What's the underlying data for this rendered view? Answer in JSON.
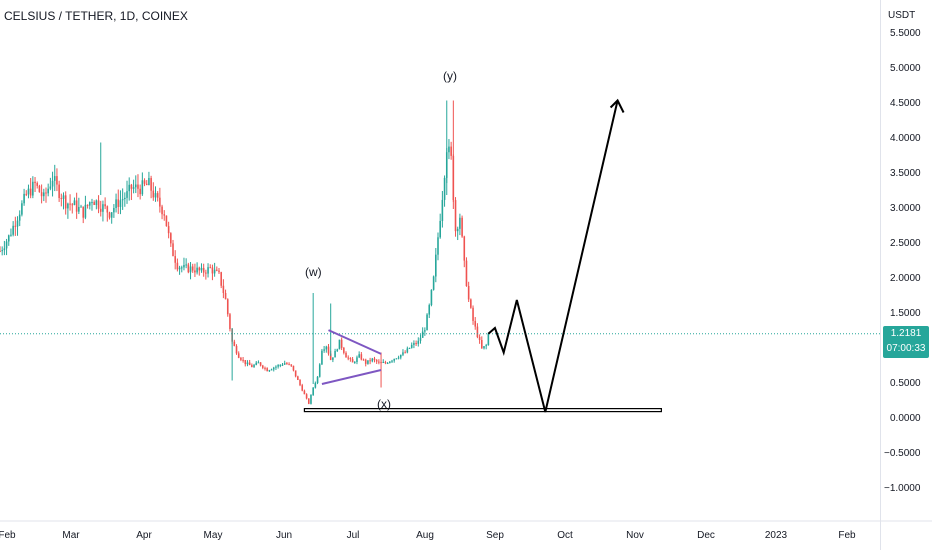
{
  "header": {
    "symbol": "CELSIUS / TETHER, 1D, COINEX"
  },
  "price_axis": {
    "currency": "USDT"
  },
  "last_price": {
    "value": "1.2181",
    "countdown": "07:00:33",
    "color": "#26a69a"
  },
  "annotations": {
    "w": "(w)",
    "y": "(y)",
    "x": "(x)"
  },
  "colors": {
    "up": "#26a69a",
    "down": "#ef5350",
    "triangle": "#7e57c2",
    "projection": "#000000",
    "price_line": "#26a69a"
  },
  "chart_data": {
    "type": "candlestick",
    "title": "CELSIUS / TETHER, 1D, COINEX",
    "y_ticks": [
      "5.5000",
      "5.0000",
      "4.5000",
      "4.0000",
      "3.5000",
      "3.0000",
      "2.5000",
      "2.0000",
      "1.5000",
      "1.0000",
      "0.5000",
      "0.0000",
      "−0.5000",
      "−1.0000"
    ],
    "y_tick_values": [
      5.5,
      5.0,
      4.5,
      4.0,
      3.5,
      3.0,
      2.5,
      2.0,
      1.5,
      1.0,
      0.5,
      0.0,
      -0.5,
      -1.0
    ],
    "x_ticks": [
      "Feb",
      "Mar",
      "Apr",
      "May",
      "Jun",
      "Jul",
      "Aug",
      "Sep",
      "Oct",
      "Nov",
      "Dec",
      "2023",
      "Feb"
    ],
    "ylim": [
      -1.3,
      5.9
    ],
    "close_path": [
      [
        0,
        2.4
      ],
      [
        4,
        2.6
      ],
      [
        8,
        2.9
      ],
      [
        12,
        3.2
      ],
      [
        16,
        3.35
      ],
      [
        20,
        3.15
      ],
      [
        24,
        3.45
      ],
      [
        26,
        3.3
      ],
      [
        30,
        3.1
      ],
      [
        34,
        3.05
      ],
      [
        38,
        2.95
      ],
      [
        42,
        3.15
      ],
      [
        46,
        3.05
      ],
      [
        50,
        2.95
      ],
      [
        54,
        3.1
      ],
      [
        58,
        3.2
      ],
      [
        60,
        3.3
      ],
      [
        64,
        3.3
      ],
      [
        68,
        3.35
      ],
      [
        71,
        3.15
      ],
      [
        75,
        2.95
      ],
      [
        78,
        2.45
      ],
      [
        81,
        2.2
      ],
      [
        84,
        2.15
      ],
      [
        88,
        2.15
      ],
      [
        92,
        2.1
      ],
      [
        96,
        2.15
      ],
      [
        100,
        2.05
      ],
      [
        103,
        1.7
      ],
      [
        106,
        1.1
      ],
      [
        109,
        0.9
      ],
      [
        112,
        0.8
      ],
      [
        115,
        0.75
      ],
      [
        118,
        0.8
      ],
      [
        122,
        0.7
      ],
      [
        126,
        0.75
      ],
      [
        130,
        0.8
      ],
      [
        133,
        0.75
      ],
      [
        136,
        0.55
      ],
      [
        139,
        0.35
      ],
      [
        141,
        0.22
      ],
      [
        143,
        0.45
      ],
      [
        145,
        0.6
      ],
      [
        147,
        1.0
      ],
      [
        149,
        1.05
      ],
      [
        151,
        0.85
      ],
      [
        153,
        0.95
      ],
      [
        155,
        1.1
      ],
      [
        158,
        0.9
      ],
      [
        161,
        0.8
      ],
      [
        164,
        0.9
      ],
      [
        167,
        0.8
      ],
      [
        170,
        0.85
      ],
      [
        173,
        0.8
      ],
      [
        176,
        0.8
      ],
      [
        179,
        0.85
      ],
      [
        182,
        0.9
      ],
      [
        185,
        0.95
      ],
      [
        188,
        1.05
      ],
      [
        191,
        1.1
      ],
      [
        194,
        1.3
      ],
      [
        196,
        1.6
      ],
      [
        198,
        2.0
      ],
      [
        200,
        2.6
      ],
      [
        202,
        3.2
      ],
      [
        204,
        3.9
      ],
      [
        206,
        3.7
      ],
      [
        208,
        2.7
      ],
      [
        210,
        2.9
      ],
      [
        212,
        2.2
      ],
      [
        214,
        1.7
      ],
      [
        216,
        1.4
      ],
      [
        218,
        1.2
      ],
      [
        220,
        1.0
      ],
      [
        222,
        1.05
      ],
      [
        223,
        1.218
      ]
    ],
    "projection_path": [
      [
        223,
        1.218
      ],
      [
        226,
        1.3
      ],
      [
        230,
        0.95
      ],
      [
        236,
        1.7
      ],
      [
        249,
        0.1
      ],
      [
        282,
        4.55
      ]
    ],
    "support_line": {
      "x": [
        139,
        302
      ],
      "y": 0.12
    },
    "triangle": {
      "upper": [
        [
          150,
          1.27
        ],
        [
          174,
          0.93
        ]
      ],
      "lower": [
        [
          147,
          0.5
        ],
        [
          174,
          0.7
        ]
      ]
    },
    "last_value": 1.2181,
    "x_domain": [
      0,
      400
    ]
  }
}
